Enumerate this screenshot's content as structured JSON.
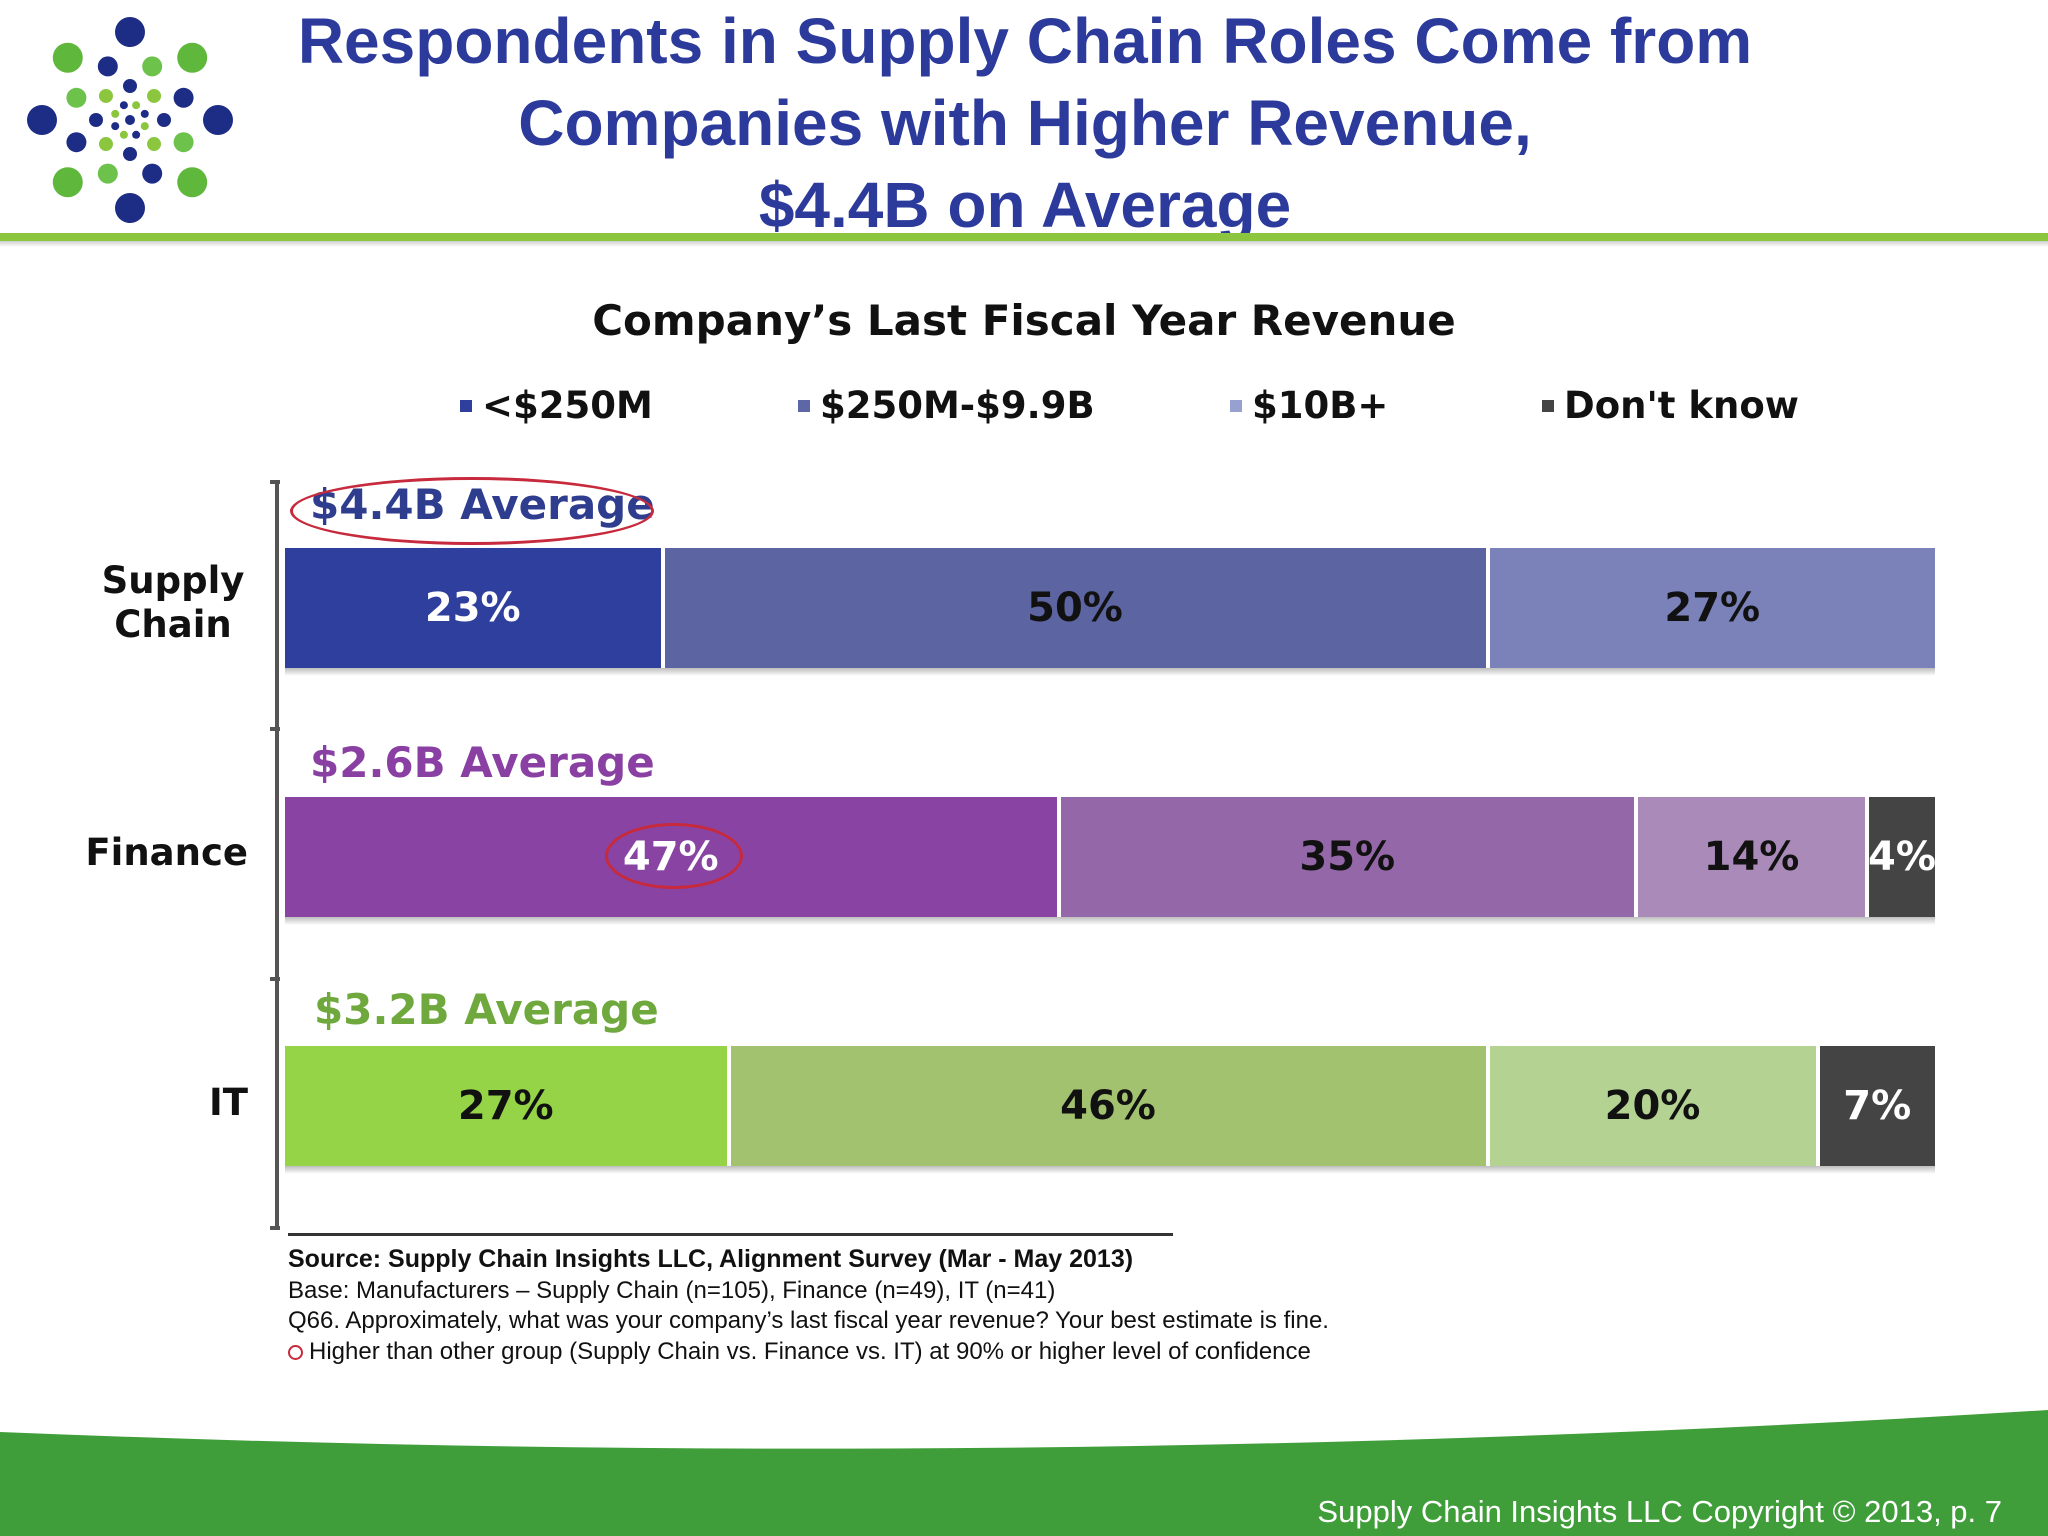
{
  "slide": {
    "title_lines": [
      "Respondents in Supply Chain Roles Come from",
      "Companies with Higher Revenue,",
      "$4.4B on Average"
    ],
    "footnotes": {
      "source": "Source:  Supply Chain Insights LLC, Alignment Survey  (Mar - May 2013)",
      "base": "Base:  Manufacturers – Supply Chain (n=105), Finance (n=49), IT (n=41)",
      "question": "Q66. Approximately, what was your company’s last fiscal year revenue? Your best estimate is fine.",
      "significance": "Higher than other group (Supply Chain vs. Finance vs. IT) at 90% or higher level of confidence"
    },
    "footer": "Supply Chain Insights LLC Copyright © 2013, p. 7",
    "colors": {
      "title": "#2b3a9b",
      "accent_green": "#8cc63f",
      "footer_green": "#3f9e3a",
      "highlight_ring": "#c62a3c"
    }
  },
  "chart_data": {
    "type": "bar",
    "orientation": "horizontal",
    "stacked": true,
    "title": "Company’s Last Fiscal Year Revenue",
    "legend": [
      "<$250M",
      "$250M-$9.9B",
      "$10B+",
      "Don't know"
    ],
    "legend_colors": [
      "#2e3f9e",
      "#5d66a6",
      "#98a0cf",
      "#444444"
    ],
    "legend_position": "top",
    "categories": [
      "Supply Chain",
      "Finance",
      "IT"
    ],
    "category_averages": [
      "$4.4B Average",
      "$2.6B Average",
      "$3.2B Average"
    ],
    "average_colors": [
      "#2f3d8e",
      "#8a3fa3",
      "#6fa83d"
    ],
    "series": [
      {
        "name": "<$250M",
        "values": [
          23,
          47,
          27
        ]
      },
      {
        "name": "$250M-$9.9B",
        "values": [
          50,
          35,
          46
        ]
      },
      {
        "name": "$10B+",
        "values": [
          27,
          14,
          20
        ]
      },
      {
        "name": "Don't know",
        "values": [
          0,
          4,
          7
        ]
      }
    ],
    "segment_colors": [
      [
        "#2e3f9e",
        "#5c64a1",
        "#7a82b9",
        "#444444"
      ],
      [
        "#8944a3",
        "#9468a8",
        "#a98ab8",
        "#444444"
      ],
      [
        "#94d446",
        "#a3c26f",
        "#b4d292",
        "#444444"
      ]
    ],
    "segment_text_colors": [
      [
        "#ffffff",
        "#111111",
        "#111111",
        "#ffffff"
      ],
      [
        "#ffffff",
        "#111111",
        "#111111",
        "#ffffff"
      ],
      [
        "#111111",
        "#111111",
        "#111111",
        "#ffffff"
      ]
    ],
    "data_labels": [
      [
        "23%",
        "50%",
        "27%",
        ""
      ],
      [
        "47%",
        "35%",
        "14%",
        "4%"
      ],
      [
        "27%",
        "46%",
        "20%",
        "7%"
      ]
    ],
    "highlighted": [
      "$4.4B Average",
      "Finance <$250M 47%"
    ],
    "xlim": [
      0,
      100
    ]
  }
}
